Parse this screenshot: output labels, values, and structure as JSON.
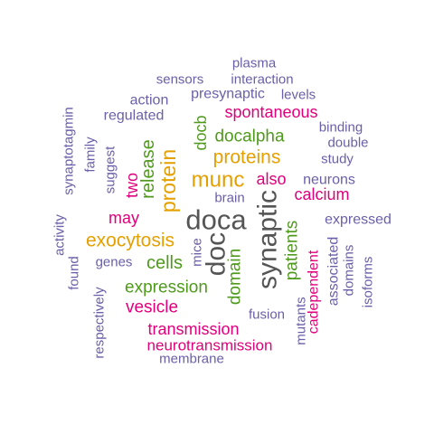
{
  "palette": {
    "dark": "#555555",
    "green": "#4f9a1c",
    "orange": "#e5a000",
    "pink": "#e0007a",
    "purple": "#6a5fa8"
  },
  "words": [
    {
      "text": "doca",
      "color": "dark"
    },
    {
      "text": "synaptic",
      "color": "dark"
    },
    {
      "text": "doc",
      "color": "dark"
    },
    {
      "text": "munc",
      "color": "orange"
    },
    {
      "text": "protein",
      "color": "orange"
    },
    {
      "text": "proteins",
      "color": "orange"
    },
    {
      "text": "exocytosis",
      "color": "orange"
    },
    {
      "text": "release",
      "color": "green"
    },
    {
      "text": "docalpha",
      "color": "green"
    },
    {
      "text": "docb",
      "color": "green"
    },
    {
      "text": "cells",
      "color": "green"
    },
    {
      "text": "expression",
      "color": "green"
    },
    {
      "text": "domain",
      "color": "green"
    },
    {
      "text": "patients",
      "color": "green"
    },
    {
      "text": "spontaneous",
      "color": "pink"
    },
    {
      "text": "also",
      "color": "pink"
    },
    {
      "text": "calcium",
      "color": "pink"
    },
    {
      "text": "two",
      "color": "pink"
    },
    {
      "text": "may",
      "color": "pink"
    },
    {
      "text": "vesicle",
      "color": "pink"
    },
    {
      "text": "transmission",
      "color": "pink"
    },
    {
      "text": "neurotransmission",
      "color": "pink"
    },
    {
      "text": "cadependent",
      "color": "pink"
    },
    {
      "text": "plasma",
      "color": "purple"
    },
    {
      "text": "sensors",
      "color": "purple"
    },
    {
      "text": "interaction",
      "color": "purple"
    },
    {
      "text": "presynaptic",
      "color": "purple"
    },
    {
      "text": "levels",
      "color": "purple"
    },
    {
      "text": "action",
      "color": "purple"
    },
    {
      "text": "regulated",
      "color": "purple"
    },
    {
      "text": "synaptotagmin",
      "color": "purple"
    },
    {
      "text": "family",
      "color": "purple"
    },
    {
      "text": "suggest",
      "color": "purple"
    },
    {
      "text": "binding",
      "color": "purple"
    },
    {
      "text": "double",
      "color": "purple"
    },
    {
      "text": "study",
      "color": "purple"
    },
    {
      "text": "neurons",
      "color": "purple"
    },
    {
      "text": "brain",
      "color": "purple"
    },
    {
      "text": "expressed",
      "color": "purple"
    },
    {
      "text": "activity",
      "color": "purple"
    },
    {
      "text": "found",
      "color": "purple"
    },
    {
      "text": "genes",
      "color": "purple"
    },
    {
      "text": "mice",
      "color": "purple"
    },
    {
      "text": "associated",
      "color": "purple"
    },
    {
      "text": "domains",
      "color": "purple"
    },
    {
      "text": "isoforms",
      "color": "purple"
    },
    {
      "text": "respectively",
      "color": "purple"
    },
    {
      "text": "fusion",
      "color": "purple"
    },
    {
      "text": "mutants",
      "color": "purple"
    },
    {
      "text": "membrane",
      "color": "purple"
    }
  ]
}
